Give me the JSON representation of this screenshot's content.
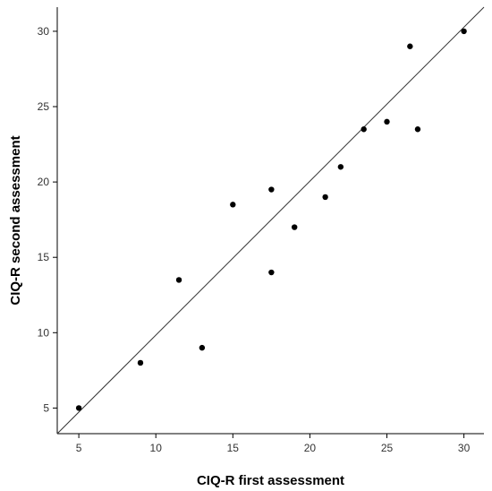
{
  "chart_data": {
    "type": "scatter",
    "title": "",
    "xlabel": "CIQ-R first assessment",
    "ylabel": "CIQ-R second assessment",
    "xlim": [
      3.6,
      31.3
    ],
    "ylim": [
      3.3,
      31.6
    ],
    "x_ticks": [
      5,
      10,
      15,
      20,
      25,
      30
    ],
    "y_ticks": [
      5,
      10,
      15,
      20,
      25,
      30
    ],
    "grid": false,
    "reference_line": {
      "from": [
        3.6,
        3.3
      ],
      "to": [
        31.3,
        31.6
      ],
      "label": ""
    },
    "point_color": "#000000",
    "line_color": "#333333",
    "series": [
      {
        "points": [
          {
            "x": 5,
            "y": 5
          },
          {
            "x": 9,
            "y": 8
          },
          {
            "x": 11.5,
            "y": 13.5
          },
          {
            "x": 13,
            "y": 9
          },
          {
            "x": 15,
            "y": 18.5
          },
          {
            "x": 17.5,
            "y": 19.5
          },
          {
            "x": 17.5,
            "y": 14
          },
          {
            "x": 19,
            "y": 17
          },
          {
            "x": 21,
            "y": 19
          },
          {
            "x": 22,
            "y": 21
          },
          {
            "x": 23.5,
            "y": 23.5
          },
          {
            "x": 25,
            "y": 24
          },
          {
            "x": 26.5,
            "y": 29
          },
          {
            "x": 27,
            "y": 23.5
          },
          {
            "x": 30,
            "y": 30
          }
        ]
      }
    ]
  }
}
